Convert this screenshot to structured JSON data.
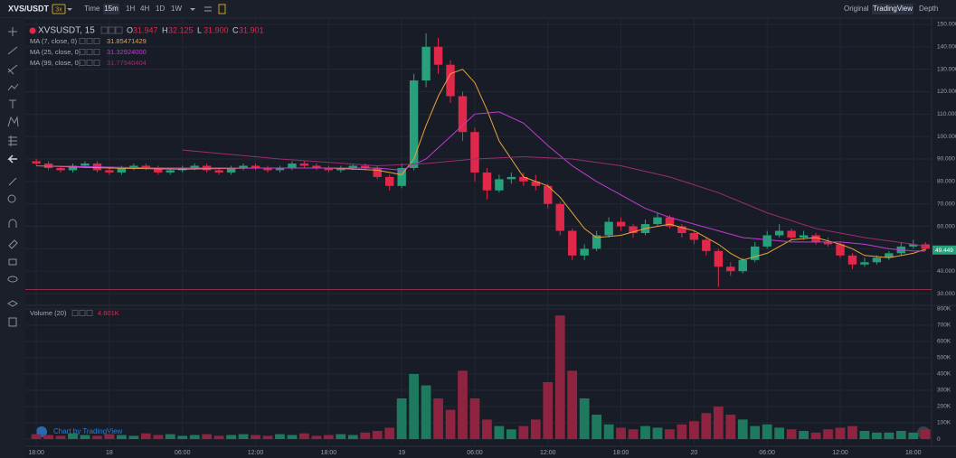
{
  "toolbar": {
    "symbol": "XVS/USDT",
    "leverage": "3x",
    "intervals": [
      "Time",
      "15m",
      "1H",
      "4H",
      "1D",
      "1W"
    ],
    "views": [
      "Original",
      "TradingView",
      "Depth"
    ]
  },
  "watermark": "Chart by TradingView",
  "chart_data": [
    {
      "type": "candlestick",
      "title": "XVSUSDT, 15",
      "up_color": "#26a17b",
      "down_color": "#e0294a",
      "grid": true,
      "legend_ohlc": {
        "labels": [
          "O",
          "H",
          "L",
          "C"
        ],
        "values": [
          31.947,
          32.125,
          31.9,
          31.901
        ],
        "value_labels": [
          "31.947",
          "32.125",
          "31.900",
          "31.901"
        ]
      },
      "last_price": 49.449,
      "x": [
        0,
        1,
        2,
        3,
        4,
        5,
        6,
        7,
        8,
        9,
        10,
        11,
        12,
        13,
        14,
        15,
        16,
        17,
        18,
        19,
        20,
        21,
        22,
        23,
        24,
        25,
        26,
        27,
        28,
        29,
        30,
        31,
        32,
        33,
        34,
        35,
        36,
        37,
        38,
        39,
        40,
        41,
        42,
        43,
        44,
        45,
        46,
        47,
        48,
        49,
        50,
        51,
        52,
        53,
        54,
        55,
        56,
        57,
        58,
        59,
        60,
        61,
        62,
        63,
        64,
        65,
        66,
        67,
        68,
        69,
        70,
        71,
        72,
        73
      ],
      "open": [
        89,
        88,
        86,
        85,
        87,
        88,
        85,
        84,
        86,
        87,
        86,
        84,
        85,
        86,
        87,
        85,
        84,
        86,
        87,
        86,
        85,
        86,
        88,
        87,
        86,
        85,
        86,
        87,
        86,
        82,
        78,
        86,
        125,
        140,
        132,
        118,
        102,
        84,
        76,
        81,
        82,
        80,
        78,
        70,
        58,
        47,
        50,
        56,
        62,
        60,
        57,
        61,
        64,
        60,
        57,
        54,
        49,
        42,
        40,
        45,
        51,
        56,
        58,
        55,
        56,
        53,
        52,
        47,
        43,
        44,
        46,
        48,
        51,
        52
      ],
      "high": [
        90,
        89,
        87,
        88,
        89,
        89,
        86,
        87,
        88,
        88,
        87,
        86,
        87,
        88,
        88,
        86,
        87,
        88,
        88,
        87,
        87,
        89,
        89,
        88,
        87,
        87,
        88,
        88,
        87,
        83,
        88,
        128,
        146,
        144,
        134,
        120,
        104,
        86,
        83,
        84,
        84,
        83,
        79,
        71,
        59,
        52,
        58,
        64,
        64,
        61,
        63,
        66,
        65,
        61,
        58,
        55,
        50,
        44,
        46,
        53,
        58,
        61,
        59,
        58,
        57,
        55,
        53,
        48,
        46,
        47,
        49,
        53,
        54,
        53
      ],
      "low": [
        87,
        85,
        84,
        84,
        86,
        84,
        83,
        83,
        85,
        85,
        83,
        83,
        84,
        85,
        84,
        83,
        83,
        85,
        85,
        84,
        84,
        85,
        86,
        85,
        84,
        84,
        85,
        85,
        81,
        76,
        77,
        85,
        122,
        128,
        115,
        98,
        80,
        72,
        75,
        79,
        78,
        76,
        68,
        56,
        45,
        45,
        49,
        55,
        58,
        55,
        56,
        60,
        59,
        55,
        52,
        47,
        33,
        38,
        39,
        44,
        50,
        55,
        54,
        54,
        52,
        51,
        46,
        41,
        42,
        43,
        45,
        47,
        50,
        49
      ],
      "close": [
        88,
        86,
        85,
        87,
        88,
        85,
        84,
        86,
        87,
        86,
        84,
        85,
        86,
        87,
        85,
        84,
        86,
        87,
        86,
        85,
        86,
        88,
        87,
        86,
        85,
        86,
        87,
        86,
        82,
        78,
        86,
        125,
        140,
        132,
        118,
        102,
        84,
        76,
        81,
        82,
        80,
        78,
        70,
        58,
        47,
        50,
        56,
        62,
        60,
        57,
        61,
        64,
        60,
        57,
        54,
        49,
        42,
        40,
        45,
        51,
        56,
        58,
        55,
        56,
        53,
        52,
        47,
        43,
        44,
        46,
        48,
        51,
        52,
        50
      ],
      "series": [
        {
          "name": "MA (7, close, 0)",
          "color": "#e9a23b",
          "legend_value": 31.85471429,
          "x": [
            0,
            6,
            12,
            18,
            24,
            28,
            30,
            31,
            32,
            33,
            34,
            35,
            36,
            37,
            38,
            40,
            42,
            43,
            44,
            45,
            46,
            48,
            50,
            52,
            54,
            56,
            57,
            58,
            60,
            62,
            64,
            66,
            67,
            68,
            70,
            72,
            73
          ],
          "values": [
            87,
            86,
            85.5,
            86,
            86,
            85,
            83,
            90,
            105,
            118,
            128,
            130,
            124,
            112,
            98,
            82,
            78,
            73,
            66,
            59,
            55,
            56,
            59,
            61,
            58,
            52,
            48,
            45,
            48,
            54,
            55,
            52,
            50,
            47,
            46,
            48,
            49.8
          ]
        },
        {
          "name": "MA (25, close, 0)",
          "color": "#c23bd4",
          "legend_value": {
            "value": 31.32924,
            "label": "31.32924000"
          },
          "x": [
            0,
            10,
            20,
            28,
            30,
            32,
            34,
            36,
            38,
            40,
            42,
            44,
            46,
            48,
            50,
            52,
            54,
            56,
            58,
            60,
            62,
            64,
            66,
            68,
            70,
            72,
            73
          ],
          "values": [
            87,
            86,
            86,
            86,
            85,
            90,
            100,
            110,
            111,
            106,
            96,
            87,
            80,
            74,
            68,
            64,
            61,
            58,
            55,
            54,
            53,
            53,
            53,
            52,
            50,
            49,
            49
          ]
        },
        {
          "name": "MA (99, close, 0)",
          "color": "#9b2d6e",
          "legend_value": 31.77940404,
          "x": [
            12,
            20,
            28,
            32,
            36,
            40,
            44,
            48,
            52,
            56,
            60,
            64,
            68,
            72,
            73
          ],
          "values": [
            94,
            90,
            87,
            88,
            90,
            91,
            90,
            87,
            82,
            75,
            66,
            59,
            55,
            52,
            51
          ]
        }
      ],
      "xlim": [
        -0.9,
        73.5
      ],
      "xticks": [
        {
          "value": 0,
          "label": "18:00"
        },
        {
          "value": 6,
          "label": "18"
        },
        {
          "value": 12,
          "label": "06:00"
        },
        {
          "value": 18,
          "label": "12:00"
        },
        {
          "value": 24,
          "label": "18:00"
        },
        {
          "value": 30,
          "label": "19"
        },
        {
          "value": 36,
          "label": "06:00"
        },
        {
          "value": 42,
          "label": "12:00"
        },
        {
          "value": 48,
          "label": "18:00"
        },
        {
          "value": 54,
          "label": "20"
        },
        {
          "value": 60,
          "label": "06:00"
        },
        {
          "value": 66,
          "label": "12:00"
        },
        {
          "value": 72,
          "label": "18:00"
        }
      ],
      "ylim": [
        25.6,
        152
      ],
      "yticks": [
        {
          "value": 30,
          "label": "30.000"
        },
        {
          "value": 40,
          "label": "40.000"
        },
        {
          "value": 50,
          "label": "50.000"
        },
        {
          "value": 60,
          "label": "60.000"
        },
        {
          "value": 70,
          "label": "70.000"
        },
        {
          "value": 80,
          "label": "80.000"
        },
        {
          "value": 90,
          "label": "90.000"
        },
        {
          "value": 100,
          "label": "100.000"
        },
        {
          "value": 110,
          "label": "110.000"
        },
        {
          "value": 120,
          "label": "120.000"
        },
        {
          "value": 130,
          "label": "130.000"
        },
        {
          "value": 140,
          "label": "140.000"
        },
        {
          "value": 150,
          "label": "150.000"
        }
      ]
    },
    {
      "type": "bar",
      "title": "Volume (20)",
      "legend_value": {
        "value": 4601,
        "label": "4.601K"
      },
      "up_color": "#1e7a5e",
      "down_color": "#8e2440",
      "values": [
        30000,
        25000,
        20000,
        35000,
        25000,
        20000,
        30000,
        25000,
        20000,
        35000,
        25000,
        30000,
        20000,
        25000,
        30000,
        20000,
        25000,
        30000,
        25000,
        20000,
        30000,
        25000,
        35000,
        20000,
        25000,
        30000,
        25000,
        40000,
        50000,
        70000,
        250000,
        400000,
        330000,
        250000,
        180000,
        420000,
        250000,
        120000,
        80000,
        60000,
        80000,
        120000,
        350000,
        760000,
        420000,
        250000,
        150000,
        90000,
        70000,
        60000,
        80000,
        70000,
        60000,
        90000,
        110000,
        160000,
        200000,
        150000,
        120000,
        80000,
        90000,
        70000,
        60000,
        50000,
        40000,
        60000,
        70000,
        80000,
        50000,
        40000,
        40000,
        50000,
        40000,
        60000
      ],
      "ylim": [
        -22000,
        811000
      ],
      "yticks": [
        0,
        {
          "value": 100000,
          "label": "100K"
        },
        {
          "value": 200000,
          "label": "200K"
        },
        {
          "value": 300000,
          "label": "300K"
        },
        {
          "value": 400000,
          "label": "400K"
        },
        {
          "value": 500000,
          "label": "500K"
        },
        {
          "value": 600000,
          "label": "600K"
        },
        {
          "value": 700000,
          "label": "700K"
        },
        {
          "value": 800000,
          "label": "800K"
        }
      ]
    }
  ]
}
